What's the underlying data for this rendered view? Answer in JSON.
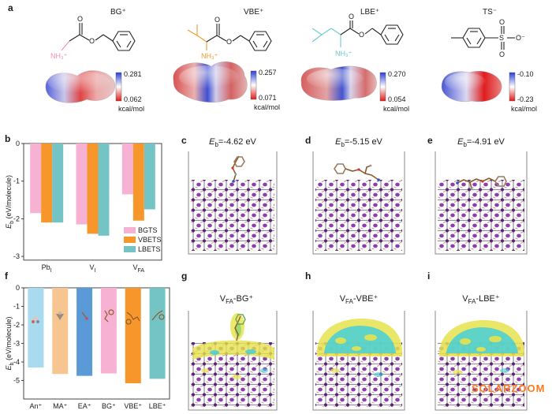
{
  "panel_labels": {
    "a": "a",
    "b": "b",
    "c": "c",
    "d": "d",
    "e": "e",
    "f": "f",
    "g": "g",
    "h": "h",
    "i": "i"
  },
  "panel_a": {
    "molecules": [
      {
        "title": "BG⁺",
        "amine": "NH₃⁺",
        "carbonyl_o": "O",
        "ester_o": "O",
        "scale_max": "0.281",
        "scale_min": "0.062",
        "unit": "kcal/mol",
        "accent": "#f08fb6"
      },
      {
        "title": "VBE⁺",
        "amine": "NH₃⁺",
        "carbonyl_o": "O",
        "ester_o": "O",
        "scale_max": "0.257",
        "scale_min": "0.071",
        "unit": "kcal/mol",
        "accent": "#f39a2b"
      },
      {
        "title": "LBE⁺",
        "amine": "NH₃⁺",
        "carbonyl_o": "O",
        "ester_o": "O",
        "scale_max": "0.270",
        "scale_min": "0.054",
        "unit": "kcal/mol",
        "accent": "#6ec8d4"
      },
      {
        "title": "TS⁻",
        "sulfur": "S",
        "oxo_top": "O",
        "oxo_bottom": "O",
        "oxide": "O⁻",
        "scale_max": "-0.10",
        "scale_min": "-0.23",
        "unit": "kcal/mol"
      }
    ]
  },
  "binding_panels": [
    {
      "sym": "E",
      "sub": "b",
      "value": "=-4.62 eV"
    },
    {
      "sym": "E",
      "sub": "b",
      "value": "=-5.15 eV"
    },
    {
      "sym": "E",
      "sub": "b",
      "value": "=-4.91 eV"
    }
  ],
  "density_panels": [
    {
      "main": "V",
      "sub": "FA",
      "rest": "-BG⁺"
    },
    {
      "main": "V",
      "sub": "FA",
      "rest": "-VBE⁺"
    },
    {
      "main": "V",
      "sub": "FA",
      "rest": "-LBE⁺"
    }
  ],
  "colors": {
    "lattice_atom": "#7b2f95",
    "density_positive": "#e6e24c",
    "density_negative": "#47cfd8",
    "watermark": "#ff7a1f"
  },
  "watermark": "SOLARZOOM",
  "chart_data": [
    {
      "type": "bar",
      "panel": "b",
      "categories": [
        {
          "main": "Pb",
          "sub": "I"
        },
        {
          "main": "V",
          "sub": "I"
        },
        {
          "main": "V",
          "sub": "FA"
        }
      ],
      "series": [
        {
          "name": "BGTS",
          "color": "#f7b2d3",
          "values": [
            -1.85,
            -2.15,
            -1.35
          ]
        },
        {
          "name": "VBETS",
          "color": "#f7972b",
          "values": [
            -2.1,
            -2.4,
            -2.05
          ]
        },
        {
          "name": "LBETS",
          "color": "#74c4c6",
          "values": [
            -2.1,
            -2.45,
            -1.75
          ]
        }
      ],
      "ylabel": {
        "main": "E",
        "sub": "b",
        "rest": " (eV/molecule)"
      },
      "ylim": [
        -3.1,
        0
      ],
      "yticks": [
        0,
        -1,
        -2,
        -3
      ],
      "legend": "bottom-right",
      "grid": false
    },
    {
      "type": "bar",
      "panel": "f",
      "categories": [
        "An⁺",
        "MA⁺",
        "EA⁺",
        "BG⁺",
        "VBE⁺",
        "LBE⁺"
      ],
      "values": [
        -4.3,
        -4.65,
        -4.75,
        -4.62,
        -5.15,
        -4.91
      ],
      "colors": [
        "#a8dbee",
        "#f6c590",
        "#5a9ad6",
        "#f7b2d3",
        "#f7972b",
        "#74c4c6"
      ],
      "ylabel": {
        "main": "E",
        "sub": "b",
        "rest": " (eV/molecule)"
      },
      "ylim": [
        -6,
        0
      ],
      "yticks": [
        0,
        -1,
        -2,
        -3,
        -4,
        -5
      ],
      "grid": false
    }
  ]
}
